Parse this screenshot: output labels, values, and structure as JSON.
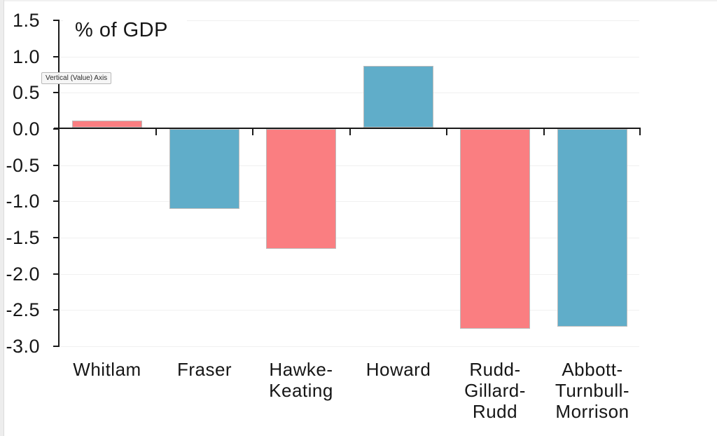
{
  "app": {
    "tooltip_text": "Vertical (Value) Axis"
  },
  "chart_data": {
    "type": "bar",
    "title": "% of GDP",
    "categories": [
      "Whitlam",
      "Fraser",
      "Hawke-Keating",
      "Howard",
      "Rudd-Gillard-Rudd",
      "Abbott-Turnbull-Morrison"
    ],
    "category_display": [
      "Whitlam",
      "Fraser",
      "Hawke-\nKeating",
      "Howard",
      "Rudd-\nGillard-\nRudd",
      "Abbott-\nTurnbull-\nMorrison"
    ],
    "values": [
      0.12,
      -1.1,
      -1.65,
      0.87,
      -2.76,
      -2.73
    ],
    "bar_colors": [
      "#FA7E81",
      "#60ADC9",
      "#FA7E81",
      "#60ADC9",
      "#FA7E81",
      "#60ADC9"
    ],
    "xlabel": "",
    "ylabel": "",
    "ylim": [
      -3.0,
      1.5
    ],
    "yticks": [
      1.5,
      1.0,
      0.5,
      0.0,
      -0.5,
      -1.0,
      -1.5,
      -2.0,
      -2.5,
      -3.0
    ],
    "ytick_labels": [
      "1.5",
      "1.0",
      "0.5",
      "0.0",
      "-0.5",
      "-1.0",
      "-1.5",
      "-2.0",
      "-2.5",
      "-3.0"
    ],
    "grid": true,
    "legend": false,
    "colors": {
      "pink": "#FA7E81",
      "blue": "#60ADC9",
      "axis": "#1a1a1a",
      "gridline": "#f0f0f0",
      "text": "#161616"
    }
  }
}
